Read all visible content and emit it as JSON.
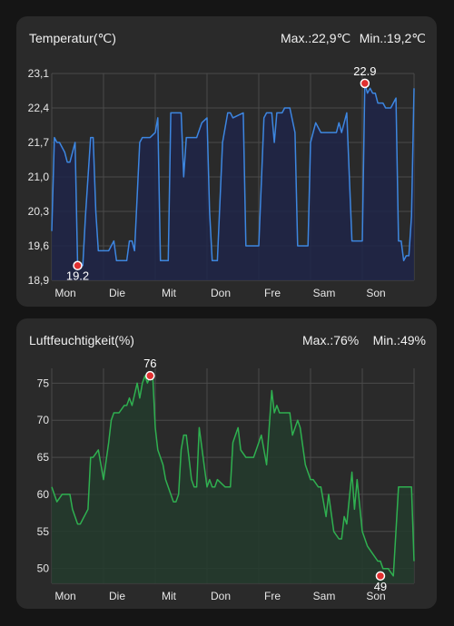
{
  "cards": {
    "temperature": {
      "title": "Temperatur(℃)",
      "max_label": "Max.:22,9℃",
      "min_label": "Min.:19,2℃"
    },
    "humidity": {
      "title": "Luftfeuchtigkeit(%)",
      "max_label": "Max.:76%",
      "min_label": "Min.:49%"
    }
  },
  "colors": {
    "temperature_line": "#3d86e0",
    "temperature_fill": "#1f2448",
    "humidity_line": "#2fb050",
    "humidity_fill": "#233b2d",
    "marker": "#e03030",
    "grid": "#4a4a4a"
  },
  "chart_data": [
    {
      "type": "line",
      "title": "Temperatur(℃)",
      "categories": [
        "Mon",
        "Die",
        "Mit",
        "Don",
        "Fre",
        "Sam",
        "Son"
      ],
      "y_ticks": [
        "23,1",
        "22,4",
        "21,7",
        "21,0",
        "20,3",
        "19,6",
        "18,9"
      ],
      "y_tick_values": [
        23.1,
        22.4,
        21.7,
        21.0,
        20.3,
        19.6,
        18.9
      ],
      "ylim": [
        18.9,
        23.1
      ],
      "xlim": [
        0,
        7
      ],
      "grid": true,
      "series": [
        {
          "x": [
            0,
            0.05,
            0.1,
            0.15,
            0.25,
            0.3,
            0.35,
            0.45,
            0.5,
            0.6,
            0.65,
            0.75,
            0.8,
            0.85,
            0.9,
            1.0,
            1.05,
            1.1,
            1.2,
            1.25,
            1.35,
            1.45,
            1.5,
            1.55,
            1.6,
            1.7,
            1.75,
            1.8,
            1.9,
            2.0,
            2.05,
            2.1,
            2.2,
            2.25,
            2.3,
            2.5,
            2.55,
            2.6,
            2.7,
            2.75,
            2.8,
            2.9,
            3.0,
            3.05,
            3.1,
            3.15,
            3.2,
            3.3,
            3.4,
            3.45,
            3.5,
            3.7,
            3.75,
            3.8,
            3.95,
            4.0,
            4.1,
            4.15,
            4.25,
            4.3,
            4.35,
            4.45,
            4.5,
            4.6,
            4.7,
            4.75,
            4.8,
            4.9,
            4.95,
            5.0,
            5.1,
            5.2,
            5.3,
            5.35,
            5.4,
            5.5,
            5.55,
            5.6,
            5.7,
            5.8,
            5.85,
            5.9,
            6.0,
            6.05,
            6.1,
            6.15,
            6.2,
            6.25,
            6.3,
            6.4,
            6.45,
            6.5,
            6.55,
            6.6,
            6.65,
            6.7,
            6.75,
            6.8,
            6.85,
            6.9,
            6.95,
            7.0
          ],
          "y": [
            19.9,
            21.8,
            21.7,
            21.7,
            21.5,
            21.3,
            21.3,
            21.7,
            19.2,
            19.2,
            20.2,
            21.8,
            21.8,
            20.3,
            19.5,
            19.5,
            19.5,
            19.5,
            19.7,
            19.3,
            19.3,
            19.3,
            19.7,
            19.7,
            19.5,
            21.7,
            21.8,
            21.8,
            21.8,
            21.9,
            22.2,
            19.3,
            19.3,
            19.3,
            22.3,
            22.3,
            21.0,
            21.8,
            21.8,
            21.8,
            21.8,
            22.1,
            22.2,
            20.3,
            19.3,
            19.3,
            19.3,
            21.7,
            22.3,
            22.3,
            22.2,
            22.3,
            19.6,
            19.6,
            19.6,
            19.6,
            22.2,
            22.3,
            22.3,
            21.7,
            22.3,
            22.3,
            22.4,
            22.4,
            21.9,
            19.6,
            19.6,
            19.6,
            19.6,
            21.7,
            22.1,
            21.9,
            21.9,
            21.9,
            21.9,
            21.9,
            22.1,
            21.9,
            22.3,
            19.7,
            19.7,
            19.7,
            19.7,
            22.9,
            22.7,
            22.8,
            22.7,
            22.7,
            22.5,
            22.5,
            22.4,
            22.4,
            22.4,
            22.5,
            22.6,
            19.7,
            19.7,
            19.3,
            19.4,
            19.4,
            20.2,
            22.8
          ]
        }
      ],
      "annotations": [
        {
          "label": "19.2",
          "x": 0.5,
          "y": 19.2,
          "kind": "min"
        },
        {
          "label": "22.9",
          "x": 6.05,
          "y": 22.9,
          "kind": "max"
        }
      ]
    },
    {
      "type": "line",
      "title": "Luftfeuchtigkeit(%)",
      "categories": [
        "Mon",
        "Die",
        "Mit",
        "Don",
        "Fre",
        "Sam",
        "Son"
      ],
      "y_ticks": [
        "75",
        "70",
        "65",
        "60",
        "55",
        "50"
      ],
      "y_tick_values": [
        75,
        70,
        65,
        60,
        55,
        50
      ],
      "ylim": [
        48,
        77
      ],
      "xlim": [
        0,
        7
      ],
      "grid": true,
      "series": [
        {
          "x": [
            0,
            0.1,
            0.2,
            0.35,
            0.4,
            0.5,
            0.55,
            0.7,
            0.75,
            0.8,
            0.9,
            1.0,
            1.1,
            1.15,
            1.2,
            1.3,
            1.4,
            1.45,
            1.5,
            1.55,
            1.65,
            1.7,
            1.75,
            1.8,
            1.85,
            1.9,
            1.95,
            2.0,
            2.05,
            2.15,
            2.2,
            2.35,
            2.4,
            2.45,
            2.5,
            2.55,
            2.6,
            2.7,
            2.75,
            2.8,
            2.85,
            3.0,
            3.05,
            3.1,
            3.15,
            3.2,
            3.35,
            3.45,
            3.5,
            3.6,
            3.65,
            3.75,
            3.9,
            4.0,
            4.05,
            4.15,
            4.25,
            4.3,
            4.35,
            4.4,
            4.6,
            4.65,
            4.75,
            4.8,
            4.9,
            5.0,
            5.05,
            5.15,
            5.2,
            5.3,
            5.35,
            5.45,
            5.55,
            5.6,
            5.65,
            5.7,
            5.8,
            5.85,
            5.9,
            6.0,
            6.1,
            6.2,
            6.3,
            6.35,
            6.4,
            6.45,
            6.5,
            6.6,
            6.7,
            6.8,
            6.9,
            6.95,
            7.0
          ],
          "y": [
            61,
            59,
            60,
            60,
            58,
            56,
            56,
            58,
            65,
            65,
            66,
            62,
            67,
            70,
            71,
            71,
            72,
            72,
            73,
            72,
            75,
            73,
            75,
            76,
            75,
            76,
            76,
            69,
            66,
            64,
            62,
            59,
            59,
            60,
            66,
            68,
            68,
            62,
            61,
            61,
            69,
            61,
            62,
            61,
            61,
            62,
            61,
            61,
            67,
            69,
            66,
            65,
            65,
            67,
            68,
            64,
            74,
            71,
            72,
            71,
            71,
            68,
            70,
            69,
            64,
            62,
            62,
            61,
            61,
            57,
            60,
            55,
            54,
            54,
            57,
            56,
            63,
            58,
            62,
            55,
            53,
            52,
            51,
            51,
            50,
            50,
            50,
            49,
            61,
            61,
            61,
            61,
            51
          ]
        }
      ],
      "annotations": [
        {
          "label": "76",
          "x": 1.9,
          "y": 76,
          "kind": "max"
        },
        {
          "label": "49",
          "x": 6.35,
          "y": 49,
          "kind": "min"
        }
      ]
    }
  ]
}
